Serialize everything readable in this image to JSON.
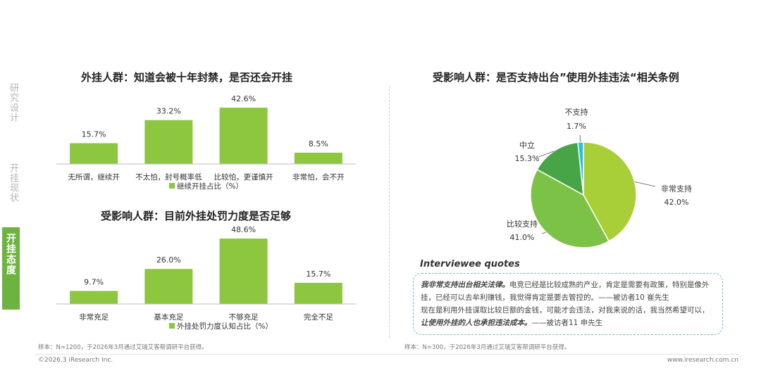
{
  "nav": {
    "items": [
      "研究设计",
      "开挂现状"
    ],
    "active": "开挂态度"
  },
  "chart_data": [
    {
      "type": "bar",
      "title": "外挂人群：知道会被十年封禁，是否还会开挂",
      "categories": [
        "无所谓，继续开",
        "不太怕，封号概率低",
        "比较怕，更谨慎开",
        "非常怕，会不开"
      ],
      "series": [
        {
          "name": "继续开挂占比（%）",
          "values": [
            15.7,
            33.2,
            42.6,
            8.5
          ]
        }
      ],
      "value_labels": [
        "15.7%",
        "33.2%",
        "42.6%",
        "8.5%"
      ],
      "ylim": [
        0,
        50
      ],
      "color": "#8dc63f",
      "legend": "bottom"
    },
    {
      "type": "bar",
      "title": "受影响人群：目前外挂处罚力度是否足够",
      "categories": [
        "非常充足",
        "基本充足",
        "不够充足",
        "完全不足"
      ],
      "series": [
        {
          "name": "外挂处罚力度认知占比（%）",
          "values": [
            9.7,
            26.0,
            48.6,
            15.7
          ]
        }
      ],
      "value_labels": [
        "9.7%",
        "26.0%",
        "48.6%",
        "15.7%"
      ],
      "ylim": [
        0,
        50
      ],
      "color": "#8dc63f",
      "legend": "bottom"
    },
    {
      "type": "pie",
      "title": "受影响人群：是否支持出台”使用外挂违法“相关条例",
      "labels": [
        "非常支持",
        "比较支持",
        "中立",
        "不支持"
      ],
      "values": [
        42.0,
        41.0,
        15.3,
        1.7
      ],
      "value_labels": [
        "42.0%",
        "41.0%",
        "15.3%",
        "1.7%"
      ],
      "colors": [
        "#a8cf38",
        "#7cc246",
        "#47a547",
        "#2bc0dc"
      ]
    }
  ],
  "quotes": {
    "title": "Interviewee quotes",
    "q1_bold": "我非常支持出台相关法律。",
    "q1_text": "电竞已经是比较成熟的产业，肯定是需要有政策，特别是像外挂，已经可以去牟利赚钱，我觉得肯定是要去管控的。——被访者10 崔先生",
    "q2_text": "现在是利用外挂谋取比较巨额的金钱，可能才会违法，对我来说的话，我当然希望可以，",
    "q2_bold": "让使用外挂的人也承担违法成本。",
    "q2_attr": "——被访者11 申先生"
  },
  "notes": {
    "left": "样本：N=1200，于2026年3月通过艾瑞艾客帮调研平台获得。",
    "right": "样本：N=300，于2026年3月通过艾瑞艾客帮调研平台获得。"
  },
  "footer": {
    "copyright": "©2026.3 iResearch Inc.",
    "url": "www.iresearch.com.cn"
  }
}
